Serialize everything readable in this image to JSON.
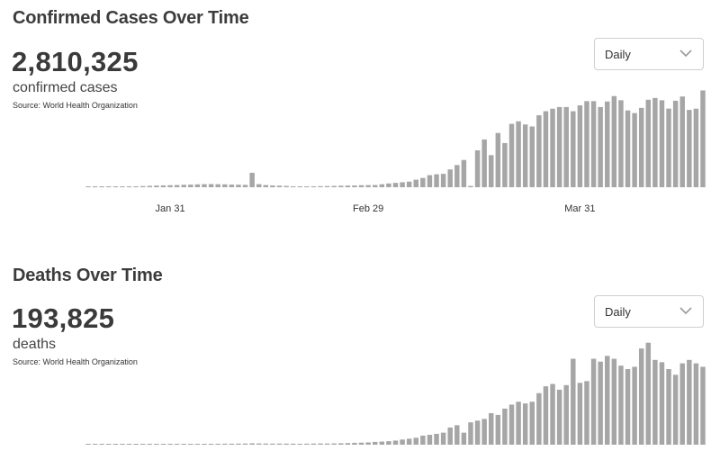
{
  "chart_data": [
    {
      "type": "bar",
      "title": "Confirmed Cases Over Time",
      "total": "2,810,325",
      "total_label": "confirmed cases",
      "source": "Source:  World Health Organization",
      "selector": "Daily",
      "x_ticks": [
        "Jan 31",
        "Feb 29",
        "Mar 31"
      ],
      "x_tick_index": [
        12,
        41,
        72
      ],
      "ylim": [
        0,
        115000
      ],
      "values": [
        50,
        150,
        200,
        300,
        450,
        600,
        800,
        1000,
        1300,
        1600,
        1900,
        2100,
        2300,
        2500,
        2800,
        3000,
        3300,
        3500,
        3600,
        3400,
        3300,
        3000,
        2900,
        2700,
        16500,
        3500,
        2500,
        2000,
        1800,
        1500,
        400,
        600,
        800,
        1000,
        1200,
        1300,
        1500,
        1700,
        1900,
        2000,
        2300,
        2400,
        2500,
        3400,
        4300,
        5000,
        5700,
        6400,
        8600,
        10600,
        13800,
        14800,
        15300,
        20300,
        25300,
        31100,
        1500,
        42100,
        54500,
        36600,
        61900,
        50400,
        72300,
        75200,
        71600,
        69300,
        82100,
        86700,
        89600,
        91500,
        91500,
        86700,
        93400,
        98200,
        98200,
        91500,
        97800,
        104000,
        99200,
        87600,
        84600,
        90500,
        99800,
        101800,
        99200,
        89700,
        98700,
        103500,
        88200,
        89600,
        110400
      ]
    },
    {
      "type": "bar",
      "title": "Deaths Over Time",
      "total": "193,825",
      "total_label": "deaths",
      "source": "Source:  World Health Organization",
      "selector": "Daily",
      "ylim": [
        0,
        8800
      ],
      "values": [
        0,
        0,
        0,
        0,
        10,
        15,
        25,
        30,
        40,
        45,
        50,
        55,
        60,
        60,
        65,
        70,
        70,
        75,
        80,
        85,
        90,
        90,
        95,
        100,
        120,
        105,
        100,
        95,
        100,
        95,
        90,
        80,
        90,
        100,
        105,
        100,
        110,
        125,
        140,
        165,
        180,
        200,
        245,
        270,
        305,
        360,
        450,
        525,
        605,
        790,
        860,
        950,
        1050,
        1500,
        1700,
        1050,
        1950,
        2100,
        2250,
        2750,
        2600,
        3150,
        3500,
        3750,
        3600,
        3750,
        4500,
        5100,
        5300,
        4800,
        5200,
        7500,
        5400,
        5550,
        7500,
        7250,
        7750,
        7500,
        6900,
        6600,
        6800,
        8400,
        8900,
        7400,
        7200,
        6600,
        6100,
        7100,
        7400,
        7100,
        6800
      ]
    }
  ]
}
